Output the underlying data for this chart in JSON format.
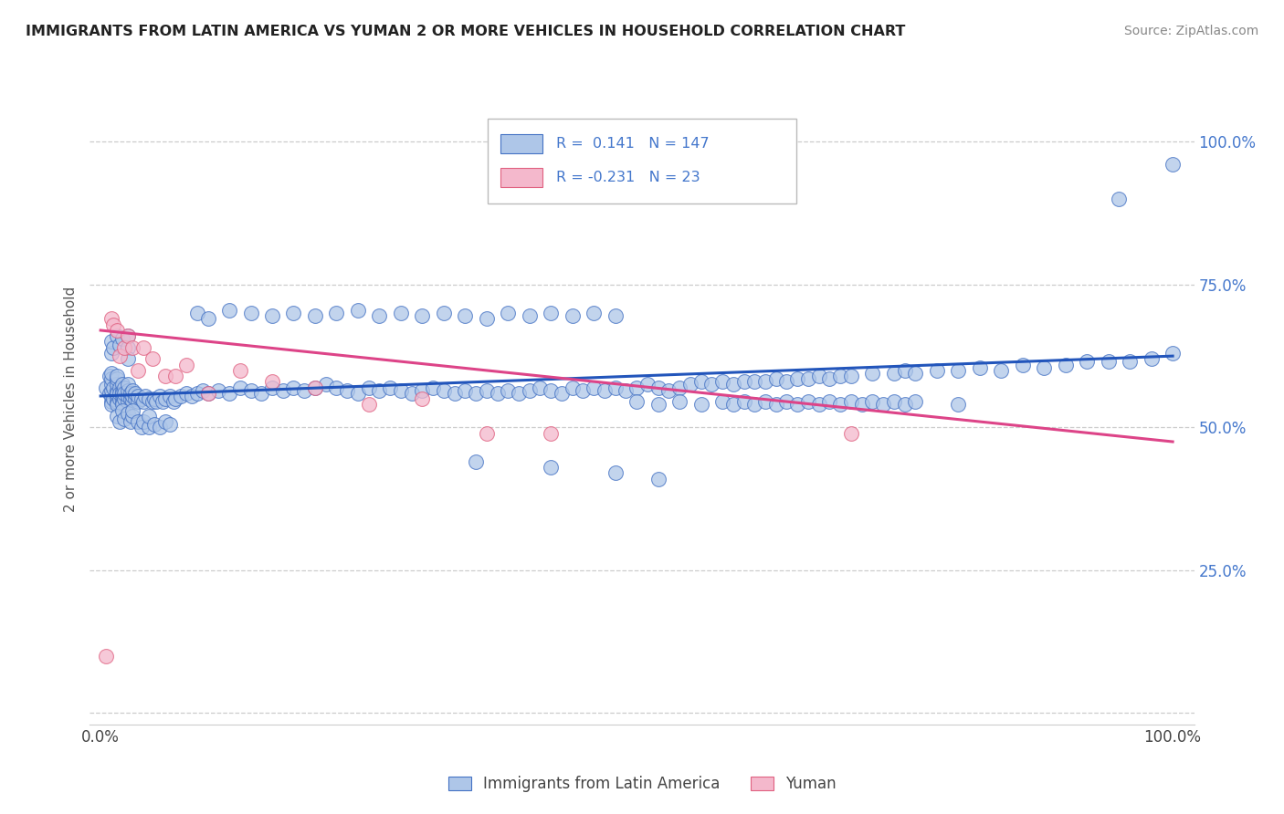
{
  "title": "IMMIGRANTS FROM LATIN AMERICA VS YUMAN 2 OR MORE VEHICLES IN HOUSEHOLD CORRELATION CHART",
  "source": "Source: ZipAtlas.com",
  "ylabel": "2 or more Vehicles in Household",
  "xlim": [
    -0.01,
    1.02
  ],
  "ylim": [
    -0.02,
    1.12
  ],
  "x_ticks": [
    0.0,
    0.2,
    0.4,
    0.6,
    0.8,
    1.0
  ],
  "x_tick_labels": [
    "0.0%",
    "",
    "",
    "",
    "",
    "100.0%"
  ],
  "y_ticks_right": [
    0.0,
    0.25,
    0.5,
    0.75,
    1.0
  ],
  "y_tick_labels_right": [
    "",
    "25.0%",
    "50.0%",
    "75.0%",
    "100.0%"
  ],
  "blue_R": 0.141,
  "blue_N": 147,
  "pink_R": -0.231,
  "pink_N": 23,
  "legend_label_blue": "Immigrants from Latin America",
  "legend_label_pink": "Yuman",
  "blue_color": "#aec6e8",
  "pink_color": "#f4b8cc",
  "blue_edge_color": "#4472c4",
  "pink_edge_color": "#e06080",
  "blue_line_color": "#2255bb",
  "pink_line_color": "#dd4488",
  "background_color": "#ffffff",
  "grid_color": "#cccccc",
  "title_color": "#222222",
  "label_color": "#4477cc",
  "blue_scatter_x": [
    0.005,
    0.008,
    0.008,
    0.01,
    0.01,
    0.01,
    0.01,
    0.01,
    0.01,
    0.01,
    0.012,
    0.012,
    0.015,
    0.015,
    0.015,
    0.015,
    0.015,
    0.015,
    0.015,
    0.015,
    0.018,
    0.018,
    0.018,
    0.02,
    0.02,
    0.02,
    0.02,
    0.02,
    0.02,
    0.022,
    0.022,
    0.022,
    0.025,
    0.025,
    0.025,
    0.025,
    0.028,
    0.028,
    0.03,
    0.03,
    0.03,
    0.032,
    0.032,
    0.035,
    0.035,
    0.038,
    0.04,
    0.042,
    0.045,
    0.048,
    0.05,
    0.052,
    0.055,
    0.058,
    0.06,
    0.065,
    0.068,
    0.07,
    0.075,
    0.08,
    0.085,
    0.09,
    0.095,
    0.1,
    0.11,
    0.12,
    0.13,
    0.14,
    0.15,
    0.16,
    0.17,
    0.18,
    0.19,
    0.2,
    0.21,
    0.22,
    0.23,
    0.24,
    0.25,
    0.26,
    0.27,
    0.28,
    0.29,
    0.3,
    0.31,
    0.32,
    0.33,
    0.34,
    0.35,
    0.36,
    0.37,
    0.38,
    0.39,
    0.4,
    0.41,
    0.42,
    0.43,
    0.44,
    0.45,
    0.46,
    0.47,
    0.48,
    0.49,
    0.5,
    0.51,
    0.52,
    0.53,
    0.54,
    0.55,
    0.56,
    0.57,
    0.58,
    0.59,
    0.6,
    0.61,
    0.62,
    0.63,
    0.64,
    0.65,
    0.66,
    0.67,
    0.68,
    0.69,
    0.7,
    0.72,
    0.74,
    0.75,
    0.76,
    0.78,
    0.8,
    0.82,
    0.84,
    0.86,
    0.88,
    0.9,
    0.92,
    0.94,
    0.96,
    0.98,
    1.0,
    0.35,
    0.42,
    0.48,
    0.52
  ],
  "blue_scatter_y": [
    0.57,
    0.56,
    0.59,
    0.545,
    0.555,
    0.565,
    0.575,
    0.585,
    0.54,
    0.595,
    0.55,
    0.57,
    0.545,
    0.555,
    0.565,
    0.575,
    0.585,
    0.54,
    0.56,
    0.59,
    0.55,
    0.57,
    0.56,
    0.545,
    0.555,
    0.565,
    0.575,
    0.54,
    0.56,
    0.55,
    0.57,
    0.56,
    0.545,
    0.555,
    0.565,
    0.575,
    0.55,
    0.56,
    0.545,
    0.555,
    0.565,
    0.55,
    0.56,
    0.545,
    0.555,
    0.55,
    0.545,
    0.555,
    0.55,
    0.545,
    0.55,
    0.545,
    0.555,
    0.545,
    0.55,
    0.555,
    0.545,
    0.55,
    0.555,
    0.56,
    0.555,
    0.56,
    0.565,
    0.56,
    0.565,
    0.56,
    0.57,
    0.565,
    0.56,
    0.57,
    0.565,
    0.57,
    0.565,
    0.57,
    0.575,
    0.57,
    0.565,
    0.56,
    0.57,
    0.565,
    0.57,
    0.565,
    0.56,
    0.565,
    0.57,
    0.565,
    0.56,
    0.565,
    0.56,
    0.565,
    0.56,
    0.565,
    0.56,
    0.565,
    0.57,
    0.565,
    0.56,
    0.57,
    0.565,
    0.57,
    0.565,
    0.57,
    0.565,
    0.57,
    0.575,
    0.57,
    0.565,
    0.57,
    0.575,
    0.58,
    0.575,
    0.58,
    0.575,
    0.58,
    0.58,
    0.58,
    0.585,
    0.58,
    0.585,
    0.585,
    0.59,
    0.585,
    0.59,
    0.59,
    0.595,
    0.595,
    0.6,
    0.595,
    0.6,
    0.6,
    0.605,
    0.6,
    0.61,
    0.605,
    0.61,
    0.615,
    0.615,
    0.615,
    0.62,
    0.63,
    0.44,
    0.43,
    0.42,
    0.41
  ],
  "blue_scatter_x2": [
    0.01,
    0.01,
    0.012,
    0.015,
    0.018,
    0.02,
    0.025,
    0.025,
    0.025,
    0.015,
    0.018,
    0.02,
    0.022,
    0.025,
    0.028,
    0.03,
    0.03,
    0.035,
    0.038,
    0.04,
    0.045,
    0.045,
    0.05,
    0.055,
    0.06,
    0.065,
    0.09,
    0.1,
    0.12,
    0.14,
    0.16,
    0.18,
    0.2,
    0.22,
    0.24,
    0.26,
    0.28,
    0.3,
    0.32,
    0.34,
    0.36,
    0.38,
    0.4,
    0.42,
    0.44,
    0.46,
    0.48,
    0.5,
    0.52,
    0.54,
    0.56,
    0.58,
    0.59,
    0.6,
    0.61,
    0.62,
    0.63,
    0.64,
    0.65,
    0.66,
    0.67,
    0.68,
    0.69,
    0.7,
    0.71,
    0.72,
    0.73,
    0.74,
    0.75,
    0.76,
    0.8,
    0.95,
    1.0
  ],
  "blue_scatter_y2": [
    0.63,
    0.65,
    0.64,
    0.66,
    0.645,
    0.655,
    0.64,
    0.66,
    0.62,
    0.52,
    0.51,
    0.53,
    0.515,
    0.525,
    0.51,
    0.52,
    0.53,
    0.51,
    0.5,
    0.51,
    0.5,
    0.52,
    0.505,
    0.5,
    0.51,
    0.505,
    0.7,
    0.69,
    0.705,
    0.7,
    0.695,
    0.7,
    0.695,
    0.7,
    0.705,
    0.695,
    0.7,
    0.695,
    0.7,
    0.695,
    0.69,
    0.7,
    0.695,
    0.7,
    0.695,
    0.7,
    0.695,
    0.545,
    0.54,
    0.545,
    0.54,
    0.545,
    0.54,
    0.545,
    0.54,
    0.545,
    0.54,
    0.545,
    0.54,
    0.545,
    0.54,
    0.545,
    0.54,
    0.545,
    0.54,
    0.545,
    0.54,
    0.545,
    0.54,
    0.545,
    0.54,
    0.9,
    0.96
  ],
  "pink_scatter_x": [
    0.005,
    0.01,
    0.012,
    0.015,
    0.018,
    0.022,
    0.025,
    0.03,
    0.035,
    0.04,
    0.048,
    0.06,
    0.07,
    0.08,
    0.1,
    0.13,
    0.16,
    0.2,
    0.25,
    0.3,
    0.36,
    0.42,
    0.7
  ],
  "pink_scatter_y": [
    0.1,
    0.69,
    0.68,
    0.67,
    0.625,
    0.64,
    0.66,
    0.64,
    0.6,
    0.64,
    0.62,
    0.59,
    0.59,
    0.61,
    0.56,
    0.6,
    0.58,
    0.57,
    0.54,
    0.55,
    0.49,
    0.49,
    0.49
  ],
  "blue_trend_x": [
    0.0,
    1.0
  ],
  "blue_trend_y": [
    0.555,
    0.625
  ],
  "pink_trend_x": [
    0.0,
    1.0
  ],
  "pink_trend_y": [
    0.67,
    0.475
  ]
}
